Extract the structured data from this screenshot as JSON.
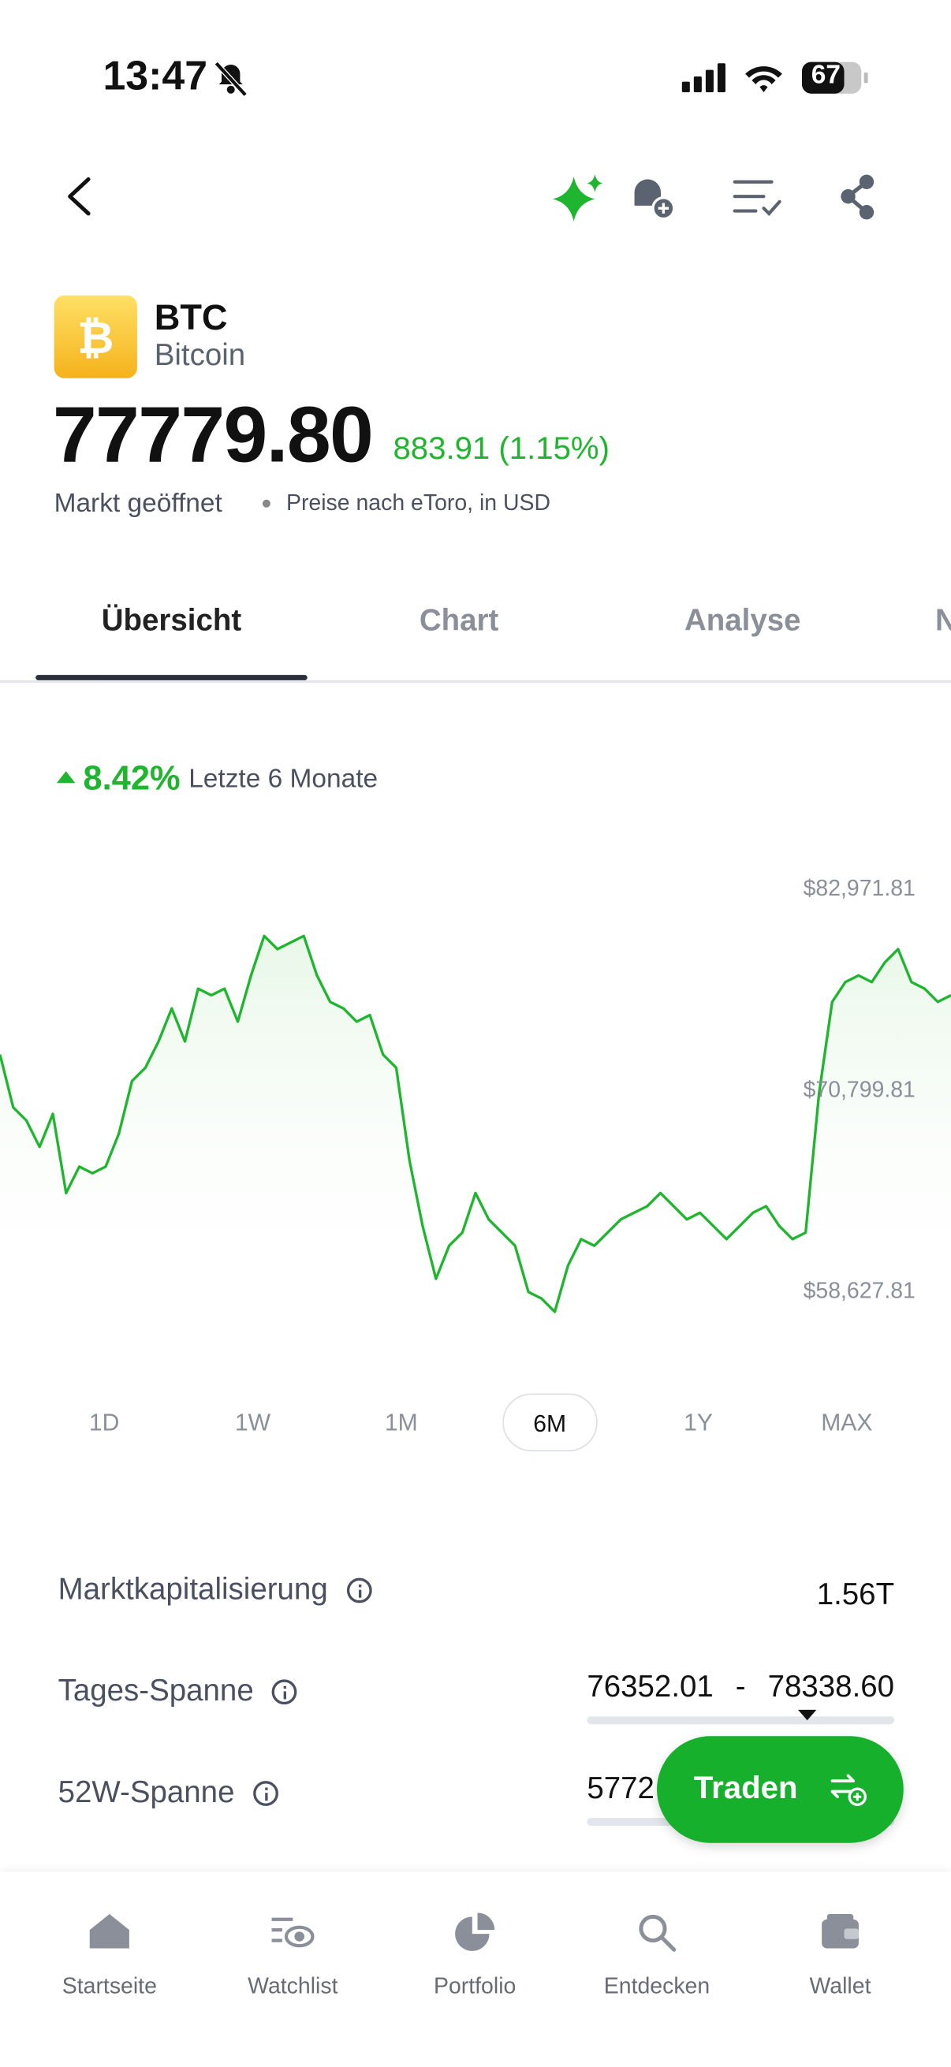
{
  "status_bar": {
    "time": "13:47",
    "battery": "67"
  },
  "asset": {
    "symbol": "BTC",
    "name": "Bitcoin",
    "price": "77779.80",
    "change": "883.91 (1.15%)",
    "status": "Markt geöffnet",
    "note": "Preise nach eToro, in USD"
  },
  "tabs": [
    "Übersicht",
    "Chart",
    "Analyse",
    "N"
  ],
  "performance": {
    "change": "8.42%",
    "period": "Letzte 6 Monate"
  },
  "chart": {
    "type": "line",
    "color": "#1fb52f",
    "ylim": [
      57000,
      85000
    ],
    "yticks": [
      {
        "value": 82971.81,
        "label": "$82,971.81"
      },
      {
        "value": 70799.81,
        "label": "$70,799.81"
      },
      {
        "value": 58627.81,
        "label": "$58,627.81"
      }
    ],
    "values": [
      72875,
      69683,
      68885,
      67289,
      69284,
      64496,
      66092,
      65693,
      66092,
      68087,
      71279,
      72077,
      73673,
      75668,
      73673,
      76865,
      76466,
      76865,
      74870,
      77663,
      80057,
      79259,
      79658,
      80057,
      77663,
      76067,
      75668,
      74870,
      75269,
      72875,
      72077,
      66491,
      62501,
      59309,
      61304,
      62102,
      64496,
      62900,
      62102,
      61304,
      58511,
      58112,
      57314,
      60107,
      61703,
      61304,
      62102,
      62900,
      63299,
      63698,
      64496,
      63698,
      62900,
      63299,
      62501,
      61703,
      62501,
      63299,
      63698,
      62501,
      61703,
      62102,
      70481,
      76067,
      77264,
      77663,
      77264,
      78461,
      79259,
      77264,
      76865,
      76067,
      76466
    ]
  },
  "ranges": {
    "options": [
      "1D",
      "1W",
      "1M",
      "6M",
      "1Y",
      "MAX"
    ],
    "selected_index": 3
  },
  "stats": [
    {
      "label": "Marktkapitalisierung",
      "value": "1.56T"
    },
    {
      "label": "Tages-Spanne",
      "low": "76352.01",
      "separator": "-",
      "high": "78338.60"
    },
    {
      "label": "52W-Spanne",
      "low": "5772"
    }
  ],
  "trade_button": "Traden",
  "nav": [
    "Startseite",
    "Watchlist",
    "Portfolio",
    "Entdecken",
    "Wallet"
  ]
}
